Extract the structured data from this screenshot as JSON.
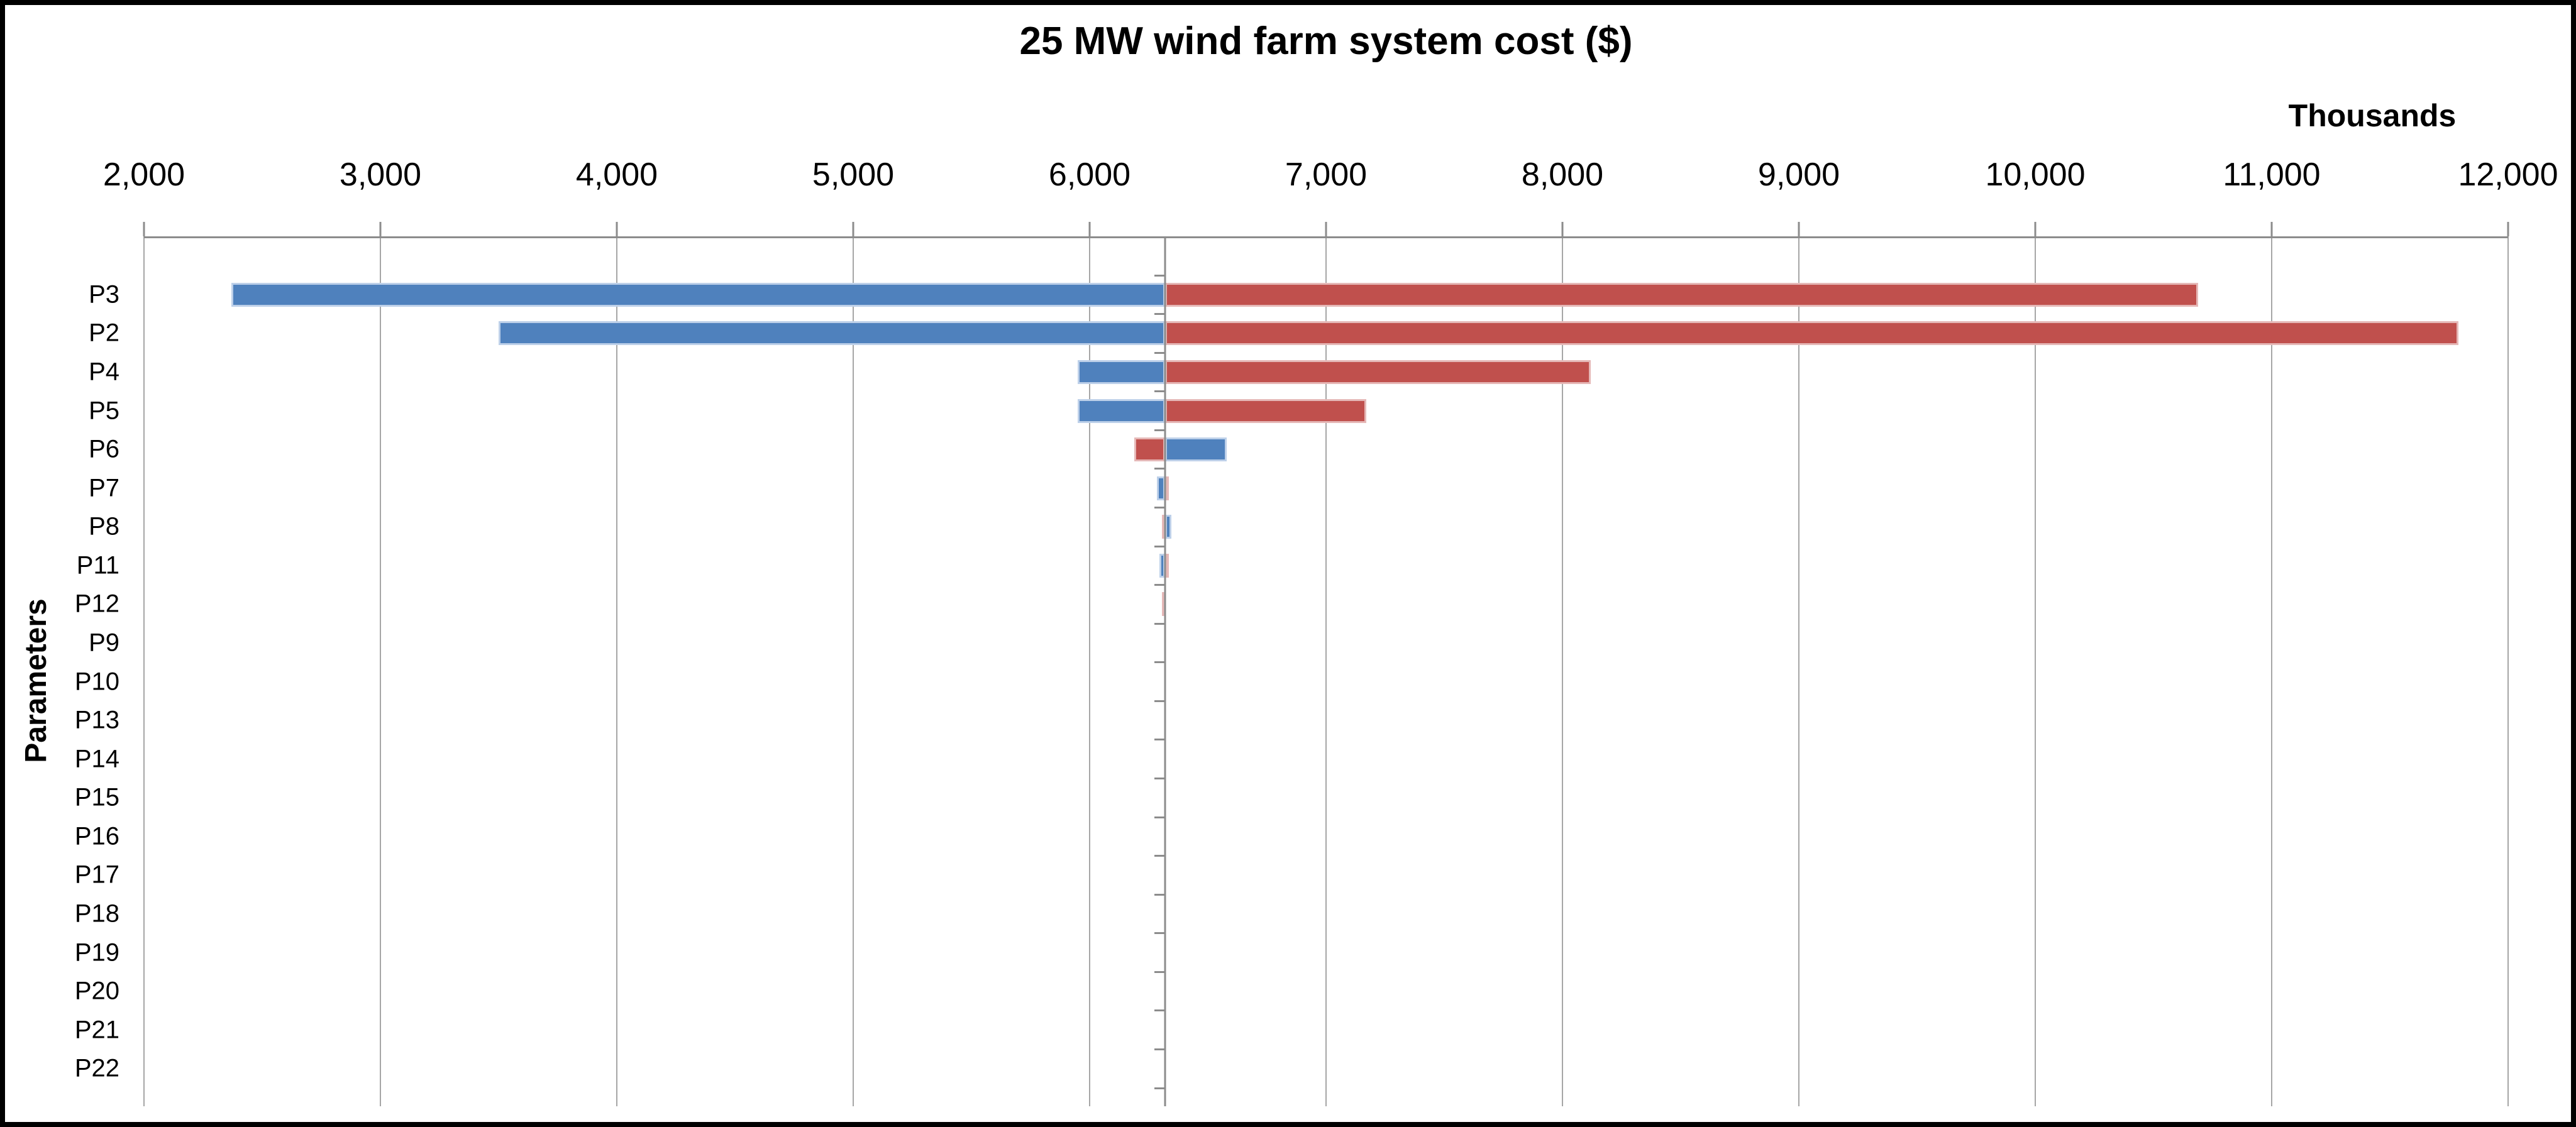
{
  "chart_data": {
    "type": "bar",
    "variant": "tornado-horizontal",
    "title": "25 MW wind farm system cost ($)",
    "unit_label": "Thousands",
    "ylabel": "Parameters",
    "xlim": [
      2000,
      12000
    ],
    "x_ticks": [
      2000,
      3000,
      4000,
      5000,
      6000,
      7000,
      8000,
      9000,
      10000,
      11000,
      12000
    ],
    "x_tick_labels": [
      "2,000",
      "3,000",
      "4,000",
      "5,000",
      "6,000",
      "7,000",
      "8,000",
      "9,000",
      "10,000",
      "11,000",
      "12,000"
    ],
    "baseline_value": 6320,
    "grid": true,
    "legend": false,
    "colors": {
      "blue_fill": "#4f81bd",
      "blue_edge": "#bdd0e9",
      "red_fill": "#c0504d",
      "red_edge": "#e5b8b7",
      "gridline": "#a6a6a6",
      "axis": "#8c8c8c",
      "text": "#000000",
      "frame_border": "#000000"
    },
    "categories": [
      "P3",
      "P2",
      "P4",
      "P5",
      "P6",
      "P7",
      "P8",
      "P11",
      "P12",
      "P9",
      "P10",
      "P13",
      "P14",
      "P15",
      "P16",
      "P17",
      "P18",
      "P19",
      "P20",
      "P21",
      "P22"
    ],
    "rows": [
      {
        "param": "P3",
        "left": {
          "color": "blue",
          "value": 2370
        },
        "right": {
          "color": "red",
          "value": 10690
        }
      },
      {
        "param": "P2",
        "left": {
          "color": "blue",
          "value": 3500
        },
        "right": {
          "color": "red",
          "value": 11790
        }
      },
      {
        "param": "P4",
        "left": {
          "color": "blue",
          "value": 5950
        },
        "right": {
          "color": "red",
          "value": 8120
        }
      },
      {
        "param": "P5",
        "left": {
          "color": "blue",
          "value": 5950
        },
        "right": {
          "color": "red",
          "value": 7170
        }
      },
      {
        "param": "P6",
        "left": {
          "color": "red",
          "value": 6190
        },
        "right": {
          "color": "blue",
          "value": 6580
        }
      },
      {
        "param": "P7",
        "left": {
          "color": "blue",
          "value": 6285
        },
        "right": {
          "color": "red",
          "value": 6335
        }
      },
      {
        "param": "P8",
        "left": {
          "color": "red",
          "value": 6305
        },
        "right": {
          "color": "blue",
          "value": 6345
        }
      },
      {
        "param": "P11",
        "left": {
          "color": "blue",
          "value": 6295
        },
        "right": {
          "color": "red",
          "value": 6335
        }
      },
      {
        "param": "P12",
        "left": {
          "color": "red",
          "value": 6305
        },
        "right": null
      },
      {
        "param": "P9",
        "left": null,
        "right": null
      },
      {
        "param": "P10",
        "left": null,
        "right": null
      },
      {
        "param": "P13",
        "left": null,
        "right": null
      },
      {
        "param": "P14",
        "left": null,
        "right": null
      },
      {
        "param": "P15",
        "left": null,
        "right": null
      },
      {
        "param": "P16",
        "left": null,
        "right": null
      },
      {
        "param": "P17",
        "left": null,
        "right": null
      },
      {
        "param": "P18",
        "left": null,
        "right": null
      },
      {
        "param": "P19",
        "left": null,
        "right": null
      },
      {
        "param": "P20",
        "left": null,
        "right": null
      },
      {
        "param": "P21",
        "left": null,
        "right": null
      },
      {
        "param": "P22",
        "left": null,
        "right": null
      }
    ]
  }
}
